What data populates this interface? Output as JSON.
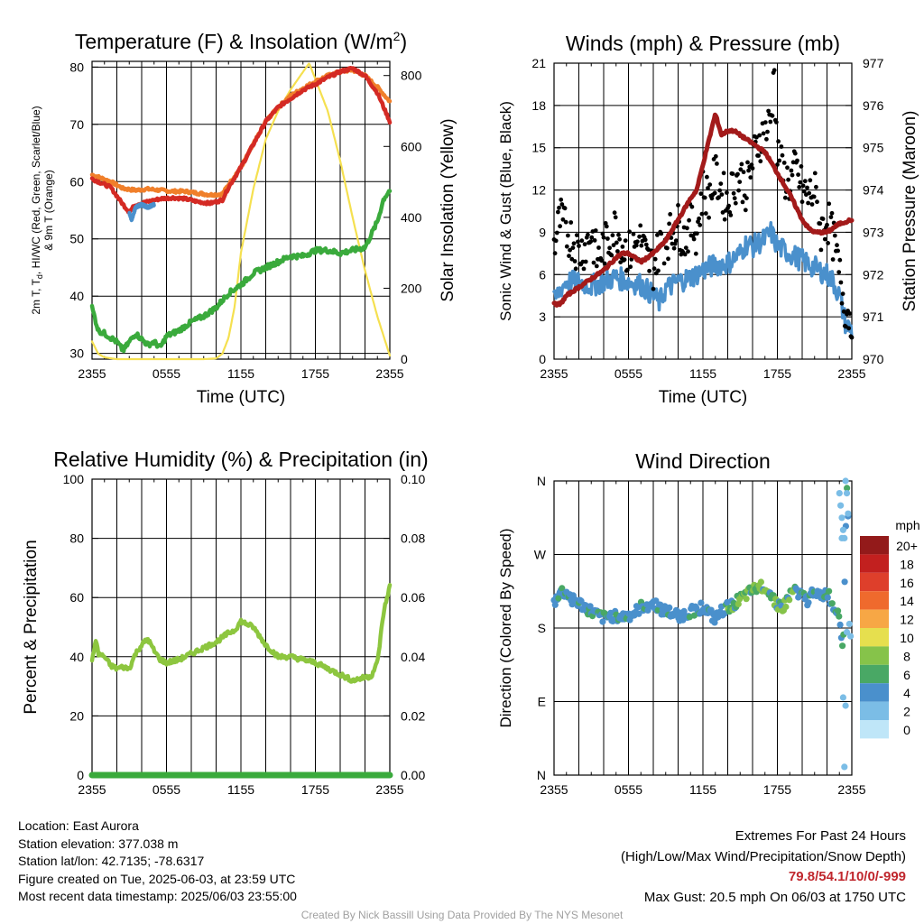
{
  "info": {
    "location": "Location: East Aurora",
    "elevation": "Station elevation: 377.038 m",
    "latlon": "Station lat/lon: 42.7135; -78.6317",
    "created": "Figure created on Tue, 2025-06-03, at 23:59 UTC",
    "recent": "Most recent data timestamp: 2025/06/03 23:55:00",
    "extremes_title": "Extremes For Past 24 Hours",
    "extremes_subtitle": "(High/Low/Max Wind/Precipitation/Snow Depth)",
    "extremes_values": "79.8/54.1/10/0/-999",
    "max_gust": "Max Gust: 20.5 mph On 06/03 at 1750 UTC",
    "credit": "Created By Nick Bassill Using Data Provided By The NYS Mesonet"
  },
  "chart_data": [
    {
      "id": "temperature",
      "type": "line",
      "title": "Temperature (F) & Insolation (W/m²)",
      "xlabel": "Time (UTC)",
      "ylabel_lines": [
        "2m T, T",
        ", HI/WC (Red, Green, Scarlet/Blue)",
        "& 9m T (Orange)"
      ],
      "ylabel_sub": "d",
      "ylabel_right": "Solar Insolation (Yellow)",
      "xlim": [
        0,
        24
      ],
      "xticks": [
        0,
        6,
        12,
        18,
        24
      ],
      "xtick_labels": [
        "2355",
        "0555",
        "1155",
        "1755",
        "2355"
      ],
      "ylim": [
        29,
        81
      ],
      "yticks": [
        30,
        40,
        50,
        60,
        70,
        80
      ],
      "y2lim": [
        0,
        840
      ],
      "y2ticks": [
        0,
        200,
        400,
        600,
        800
      ],
      "colors": {
        "temp": "#d42a24",
        "dew": "#3aaa3c",
        "t9m": "#f07f2a",
        "wc": "#4a90cc",
        "solar": "#f5e050"
      },
      "series": [
        {
          "key": "t9m",
          "x": [
            0,
            0.5,
            1.5,
            2.5,
            3.5,
            4.5,
            5.5,
            6.5,
            7.5,
            8.5,
            9.5,
            10.5,
            11,
            12,
            13,
            14,
            15,
            16,
            17,
            18,
            19,
            20,
            21,
            22,
            23,
            24
          ],
          "values": [
            61.2,
            60.8,
            60,
            58.8,
            58.5,
            58.7,
            58.5,
            58.3,
            58.3,
            58,
            57.7,
            57.8,
            59.5,
            62.5,
            66.5,
            70.5,
            73,
            75,
            76.3,
            77.5,
            78.5,
            79.2,
            79.5,
            78.5,
            76.5,
            74
          ]
        },
        {
          "key": "temp",
          "x": [
            0,
            0.5,
            1.5,
            2.5,
            3,
            3.5,
            4.5,
            5.5,
            6.5,
            7.5,
            8.5,
            9.5,
            10.5,
            11,
            12,
            13,
            14,
            15,
            16,
            17,
            18,
            19,
            20,
            21,
            22,
            23,
            24
          ],
          "values": [
            60.5,
            60,
            59,
            56,
            54.7,
            56,
            56.5,
            57,
            57.2,
            57,
            56.5,
            56.2,
            56.8,
            59,
            62.5,
            66.5,
            70.5,
            73,
            74.5,
            76,
            77,
            78.2,
            79.2,
            79.8,
            78.5,
            75.5,
            70.5
          ]
        },
        {
          "key": "wc",
          "x": [
            3,
            3.2,
            3.5,
            4,
            4.5,
            5
          ],
          "values": [
            54.5,
            53.3,
            55.5,
            56,
            55.5,
            56
          ]
        },
        {
          "key": "dew",
          "x": [
            0,
            0.5,
            1,
            2,
            2.5,
            3,
            3.5,
            4,
            4.5,
            5,
            5.5,
            6,
            7,
            8,
            9,
            10,
            11,
            12,
            13,
            14,
            15,
            16,
            17,
            18,
            19,
            20,
            21,
            22,
            23,
            23.5,
            24
          ],
          "values": [
            38,
            34,
            33.5,
            32,
            30.5,
            32,
            33.5,
            32.5,
            31.5,
            32,
            31,
            33,
            34,
            35.5,
            36.5,
            38,
            40.5,
            42,
            44,
            45,
            46,
            47,
            47,
            48,
            48,
            47.5,
            48,
            48.5,
            53,
            57,
            58.5
          ]
        },
        {
          "key": "solar",
          "x": [
            0,
            0.5,
            1,
            2,
            3,
            4,
            5,
            6,
            7,
            8,
            9,
            10,
            10.5,
            11,
            11.5,
            12,
            13,
            14,
            15,
            16,
            17,
            17.5,
            18,
            19,
            20,
            21,
            22,
            23,
            24
          ],
          "values": [
            50,
            15,
            5,
            0,
            0,
            0,
            0,
            0,
            0,
            0,
            0,
            2,
            15,
            60,
            150,
            300,
            480,
            620,
            700,
            760,
            810,
            835,
            790,
            700,
            560,
            400,
            250,
            120,
            10
          ]
        }
      ]
    },
    {
      "id": "winds",
      "type": "line",
      "title": "Winds (mph) & Pressure (mb)",
      "xlabel": "Time (UTC)",
      "ylabel": "Sonic Wind & Gust (Blue, Black)",
      "ylabel_right": "Station Pressure (Maroon)",
      "xlim": [
        0,
        24
      ],
      "xticks": [
        0,
        6,
        12,
        18,
        24
      ],
      "xtick_labels": [
        "2355",
        "0555",
        "1155",
        "1755",
        "2355"
      ],
      "ylim": [
        0,
        21
      ],
      "yticks": [
        0,
        3,
        6,
        9,
        12,
        15,
        18,
        21
      ],
      "y2lim": [
        970,
        977
      ],
      "y2ticks": [
        970,
        971,
        972,
        973,
        974,
        975,
        976,
        977
      ],
      "colors": {
        "wind": "#4a90cc",
        "gust": "#000000",
        "pressure": "#a31a1a"
      },
      "series": [
        {
          "key": "wind",
          "x": [
            0,
            0.5,
            1,
            2,
            3,
            4,
            5,
            6,
            7,
            8,
            8.5,
            9,
            10,
            11,
            12,
            13,
            14,
            15,
            15.5,
            16,
            17,
            17.5,
            18,
            19,
            20,
            21,
            22,
            22.5,
            23,
            23.5,
            24
          ],
          "values": [
            4,
            5,
            5.5,
            5.5,
            5.2,
            5.5,
            5.8,
            5.5,
            5.3,
            4.5,
            4,
            5,
            5.5,
            5.8,
            6.3,
            6.7,
            6.8,
            7.5,
            8.2,
            8,
            8.5,
            9,
            8,
            7.5,
            7,
            6.5,
            6,
            5.5,
            4.5,
            2.5,
            2
          ]
        },
        {
          "key": "gust",
          "x": [
            0,
            0.5,
            1,
            1.5,
            2,
            2.5,
            3,
            3.5,
            4,
            4.5,
            5,
            5.5,
            6,
            6.5,
            7,
            7.5,
            8,
            8.5,
            9,
            9.5,
            10,
            10.5,
            11,
            11.5,
            12,
            12.5,
            13,
            13.5,
            14,
            14.5,
            15,
            15.5,
            16,
            16.5,
            17,
            17.5,
            17.75,
            18,
            18.5,
            19,
            19.5,
            20,
            20.5,
            21,
            21.5,
            22,
            22.5,
            23,
            23.5,
            24
          ],
          "values": [
            8,
            10,
            9,
            8.5,
            7.5,
            8,
            9,
            7,
            8,
            8.5,
            9.5,
            8,
            7.5,
            8,
            8.5,
            7,
            6.5,
            8,
            8.5,
            9,
            9.5,
            8.5,
            9.5,
            9,
            12,
            11.5,
            13,
            12,
            11,
            12.5,
            13,
            12,
            14,
            15.5,
            16,
            17,
            20.5,
            14.5,
            13,
            12.5,
            13.5,
            12,
            11.5,
            12,
            9,
            10,
            8.5,
            6,
            3.5,
            3
          ]
        },
        {
          "key": "pressure",
          "x": [
            0,
            0.5,
            1,
            2,
            3,
            4,
            5,
            5.5,
            6,
            7,
            7.5,
            8,
            9,
            10,
            11,
            11.5,
            12,
            12.5,
            13,
            13.5,
            14,
            14.5,
            15,
            16,
            17,
            18,
            19,
            20,
            20.5,
            21,
            22,
            23,
            24
          ],
          "values": [
            971.3,
            971.3,
            971.5,
            971.7,
            971.9,
            972.1,
            972.4,
            972.5,
            972.5,
            972.3,
            972.4,
            972.5,
            972.8,
            973.3,
            973.8,
            974,
            974.6,
            975.2,
            975.8,
            975.3,
            975.4,
            975.4,
            975.3,
            975.1,
            974.9,
            974.4,
            973.9,
            973.3,
            973.1,
            973.0,
            973.0,
            973.2,
            973.3
          ]
        }
      ]
    },
    {
      "id": "humidity",
      "type": "line",
      "title": "Relative Humidity (%) & Precipitation (in)",
      "xlabel": "",
      "ylabel": "Percent & Precipitation",
      "xlim": [
        0,
        24
      ],
      "xticks": [
        0,
        6,
        12,
        18,
        24
      ],
      "xtick_labels": [
        "2355",
        "0555",
        "1155",
        "1755",
        "2355"
      ],
      "ylim": [
        0,
        100
      ],
      "yticks": [
        0,
        20,
        40,
        60,
        80,
        100
      ],
      "y2lim": [
        0,
        0.1
      ],
      "y2tick_labels": [
        "0.00",
        "0.02",
        "0.04",
        "0.06",
        "0.08",
        "0.10"
      ],
      "colors": {
        "rh": "#8dc63f",
        "precip": "#3aaa3c"
      },
      "series": [
        {
          "key": "rh",
          "x": [
            0,
            0.3,
            0.5,
            1,
            1.5,
            2,
            2.5,
            3,
            3.5,
            4,
            4.5,
            5,
            5.5,
            6,
            7,
            8,
            9,
            10,
            11,
            11.5,
            12,
            13,
            14,
            15,
            16,
            17,
            18,
            19,
            20,
            21,
            22,
            22.5,
            23,
            23.5,
            24
          ],
          "values": [
            38,
            46,
            41,
            40,
            37,
            36,
            36.5,
            36,
            41,
            44,
            46,
            42,
            39,
            38,
            39,
            41,
            43,
            45,
            48,
            49,
            52,
            50,
            44,
            40,
            40,
            39,
            38,
            36,
            34,
            32,
            33,
            33.5,
            38,
            55,
            64
          ]
        },
        {
          "key": "precip",
          "x": [
            0,
            24
          ],
          "values": [
            0,
            0
          ]
        }
      ]
    },
    {
      "id": "direction",
      "type": "scatter",
      "title": "Wind Direction",
      "xlabel": "",
      "ylabel": "Direction (Colored By Speed)",
      "xlim": [
        0,
        24
      ],
      "xticks": [
        0,
        6,
        12,
        18,
        24
      ],
      "xtick_labels": [
        "2355",
        "0555",
        "1155",
        "1755",
        "2355"
      ],
      "ylim": [
        0,
        360
      ],
      "yticks": [
        0,
        90,
        180,
        270,
        360
      ],
      "ytick_labels": [
        "N",
        "E",
        "S",
        "W",
        "N"
      ],
      "legend_title": "mph",
      "legend_labels": [
        "20+",
        "18",
        "16",
        "14",
        "12",
        "10",
        "8",
        "6",
        "4",
        "2",
        "0"
      ],
      "speed_colors": [
        "#bfe6f8",
        "#7bbde6",
        "#4a90cc",
        "#49a865",
        "#86c34a",
        "#e6df4e",
        "#f7a745",
        "#ef6a2d",
        "#de3f2b",
        "#c2201f",
        "#931a1a"
      ],
      "series": [
        {
          "key": "dir",
          "x": [
            0,
            0.5,
            1,
            1.5,
            2,
            2.5,
            3,
            3.5,
            4,
            4.5,
            5,
            5.5,
            6,
            6.5,
            7,
            7.5,
            8,
            8.5,
            9,
            9.5,
            10,
            10.5,
            11,
            11.5,
            12,
            12.5,
            13,
            13.5,
            14,
            14.5,
            15,
            15.5,
            16,
            16.5,
            17,
            17.5,
            18,
            18.5,
            19,
            19.5,
            20,
            20.5,
            21,
            21.5,
            22,
            22.5,
            23,
            23.3,
            23.6,
            24
          ],
          "values": [
            210,
            225,
            222,
            215,
            210,
            205,
            200,
            195,
            192,
            194,
            196,
            193,
            195,
            198,
            205,
            208,
            210,
            205,
            200,
            198,
            195,
            196,
            200,
            203,
            206,
            198,
            190,
            200,
            205,
            210,
            215,
            220,
            225,
            230,
            232,
            220,
            210,
            205,
            220,
            228,
            218,
            212,
            230,
            215,
            225,
            205,
            200,
            150,
            360,
            172
          ]
        }
      ]
    }
  ]
}
